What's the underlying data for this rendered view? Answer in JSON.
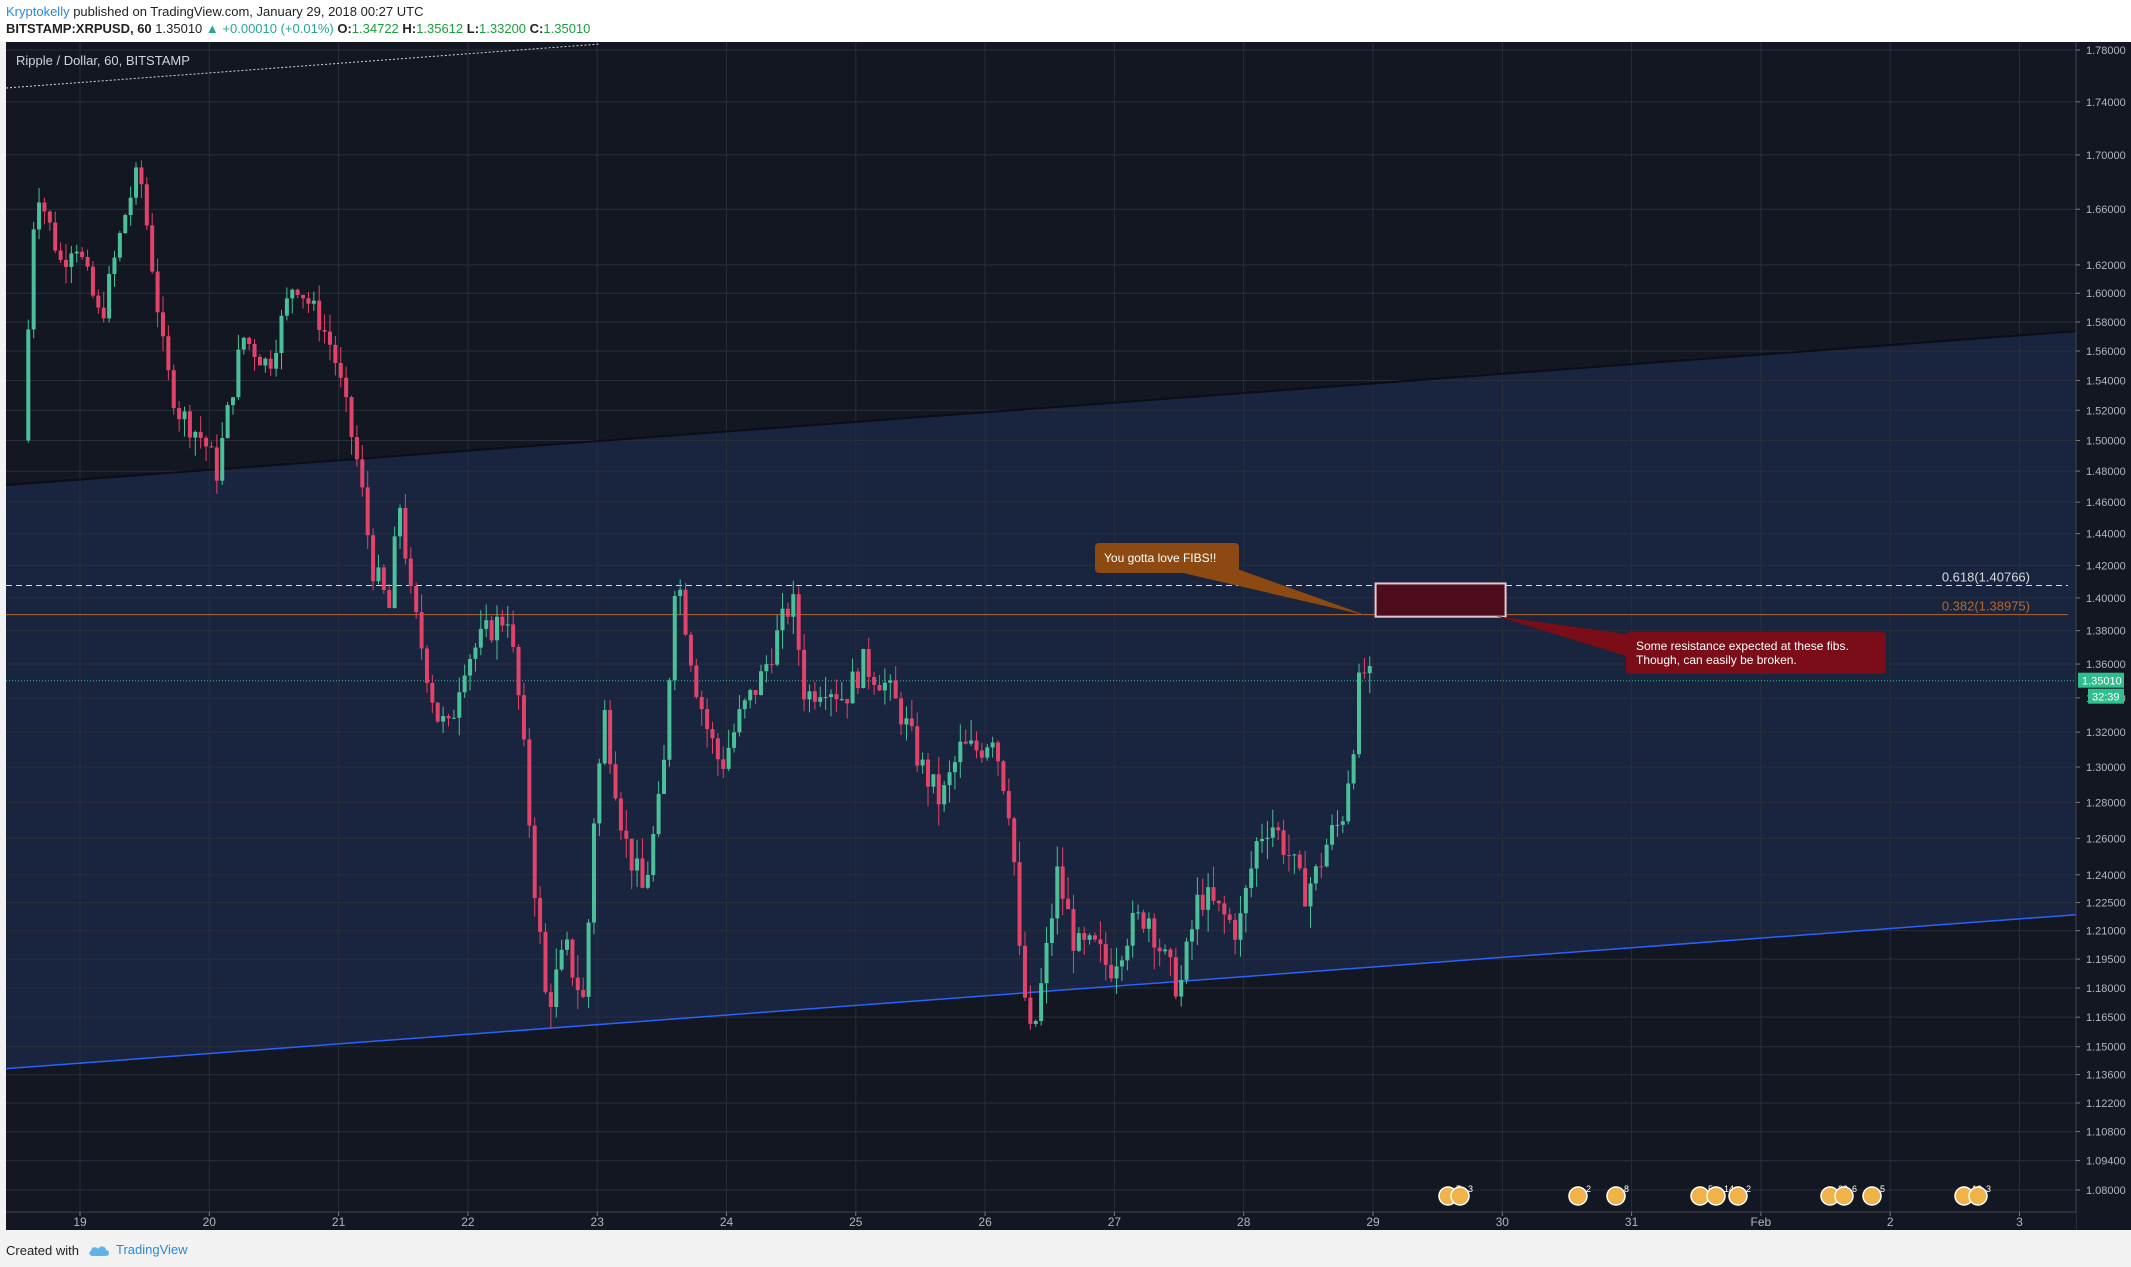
{
  "header": {
    "author": "Kryptokelly",
    "published_text": "published on TradingView.com, January 29, 2018 00:27 UTC",
    "symbol": "BITSTAMP:XRPUSD, 60",
    "last": "1.35010",
    "change": "▲ +0.00010 (+0.01%)",
    "o_label": "O:",
    "o": "1.34722",
    "h_label": "H:",
    "h": "1.35612",
    "l_label": "L:",
    "l": "1.33200",
    "c_label": "C:",
    "c": "1.35010"
  },
  "footer": {
    "created_with": "Created with",
    "brand": "TradingView"
  },
  "colors": {
    "background": "#131722",
    "up": "#4bbf9a",
    "down": "#e0446b",
    "channel_fill": "#1c2a4a",
    "fib_618": "#d9d9d9",
    "fib_382": "#b4682d",
    "callout_orange": "#8c4a12",
    "callout_red": "#7a0d18",
    "price_line": "#2fbf8f"
  },
  "chart_data": {
    "type": "candlestick",
    "title": "Ripple / Dollar, 60, BITSTAMP",
    "x_ticks": [
      "19",
      "20",
      "21",
      "22",
      "23",
      "24",
      "25",
      "26",
      "27",
      "28",
      "29",
      "30",
      "31",
      "Feb",
      "2",
      "3"
    ],
    "y_ticks": [
      "1.78000",
      "1.74000",
      "1.70000",
      "1.66000",
      "1.62000",
      "1.60000",
      "1.58000",
      "1.56000",
      "1.54000",
      "1.52000",
      "1.50000",
      "1.48000",
      "1.46000",
      "1.44000",
      "1.42000",
      "1.40000",
      "1.38000",
      "1.36000",
      "1.34000",
      "1.32000",
      "1.30000",
      "1.28000",
      "1.26000",
      "1.24000",
      "1.22500",
      "1.21000",
      "1.19500",
      "1.18000",
      "1.16500",
      "1.15000",
      "1.13600",
      "1.12200",
      "1.10800",
      "1.09400",
      "1.08000"
    ],
    "log_scale": true,
    "grid": true,
    "current_price": "1.35010",
    "countdown": "32:39",
    "fib_levels": [
      {
        "label": "0.618(1.40766)",
        "value": 1.40766
      },
      {
        "label": "0.382(1.38975)",
        "value": 1.38975
      }
    ],
    "annotations": [
      {
        "text": "You gotta love FIBS!!"
      },
      {
        "text_line1": "Some resistance expected at these fibs.",
        "text_line2": "Though, can easily be broken."
      }
    ],
    "event_badges": [
      "7",
      "3",
      "2",
      "8",
      "5",
      "14",
      "2",
      "29",
      "6",
      "5",
      "12",
      "3"
    ],
    "price_path": [
      [
        18.6,
        1.5
      ],
      [
        18.7,
        1.68
      ],
      [
        18.8,
        1.65
      ],
      [
        18.9,
        1.62
      ],
      [
        19.0,
        1.64
      ],
      [
        19.2,
        1.58
      ],
      [
        19.4,
        1.66
      ],
      [
        19.5,
        1.69
      ],
      [
        19.7,
        1.55
      ],
      [
        19.8,
        1.52
      ],
      [
        20.0,
        1.5
      ],
      [
        20.1,
        1.48
      ],
      [
        20.3,
        1.57
      ],
      [
        20.5,
        1.55
      ],
      [
        20.7,
        1.61
      ],
      [
        20.9,
        1.58
      ],
      [
        21.0,
        1.56
      ],
      [
        21.1,
        1.52
      ],
      [
        21.2,
        1.48
      ],
      [
        21.3,
        1.42
      ],
      [
        21.45,
        1.39
      ],
      [
        21.5,
        1.47
      ],
      [
        21.6,
        1.4
      ],
      [
        21.8,
        1.33
      ],
      [
        21.9,
        1.32
      ],
      [
        22.0,
        1.36
      ],
      [
        22.2,
        1.38
      ],
      [
        22.35,
        1.39
      ],
      [
        22.45,
        1.33
      ],
      [
        22.55,
        1.24
      ],
      [
        22.65,
        1.17
      ],
      [
        22.8,
        1.2
      ],
      [
        22.95,
        1.17
      ],
      [
        23.0,
        1.26
      ],
      [
        23.1,
        1.33
      ],
      [
        23.25,
        1.26
      ],
      [
        23.4,
        1.23
      ],
      [
        23.55,
        1.29
      ],
      [
        23.65,
        1.42
      ],
      [
        23.8,
        1.35
      ],
      [
        23.9,
        1.32
      ],
      [
        24.0,
        1.3
      ],
      [
        24.15,
        1.33
      ],
      [
        24.3,
        1.35
      ],
      [
        24.45,
        1.38
      ],
      [
        24.55,
        1.4
      ],
      [
        24.65,
        1.34
      ],
      [
        24.8,
        1.35
      ],
      [
        24.95,
        1.34
      ],
      [
        25.1,
        1.36
      ],
      [
        25.25,
        1.35
      ],
      [
        25.4,
        1.33
      ],
      [
        25.55,
        1.3
      ],
      [
        25.7,
        1.28
      ],
      [
        25.85,
        1.31
      ],
      [
        26.0,
        1.31
      ],
      [
        26.1,
        1.32
      ],
      [
        26.25,
        1.27
      ],
      [
        26.3,
        1.2
      ],
      [
        26.4,
        1.15
      ],
      [
        26.5,
        1.19
      ],
      [
        26.6,
        1.24
      ],
      [
        26.75,
        1.2
      ],
      [
        26.9,
        1.2
      ],
      [
        27.0,
        1.19
      ],
      [
        27.15,
        1.21
      ],
      [
        27.3,
        1.22
      ],
      [
        27.45,
        1.19
      ],
      [
        27.55,
        1.18
      ],
      [
        27.7,
        1.23
      ],
      [
        27.85,
        1.22
      ],
      [
        28.0,
        1.21
      ],
      [
        28.15,
        1.26
      ],
      [
        28.25,
        1.27
      ],
      [
        28.4,
        1.25
      ],
      [
        28.5,
        1.23
      ],
      [
        28.6,
        1.24
      ],
      [
        28.7,
        1.26
      ],
      [
        28.8,
        1.27
      ],
      [
        28.9,
        1.32
      ],
      [
        28.95,
        1.36
      ],
      [
        29.0,
        1.35
      ]
    ]
  }
}
